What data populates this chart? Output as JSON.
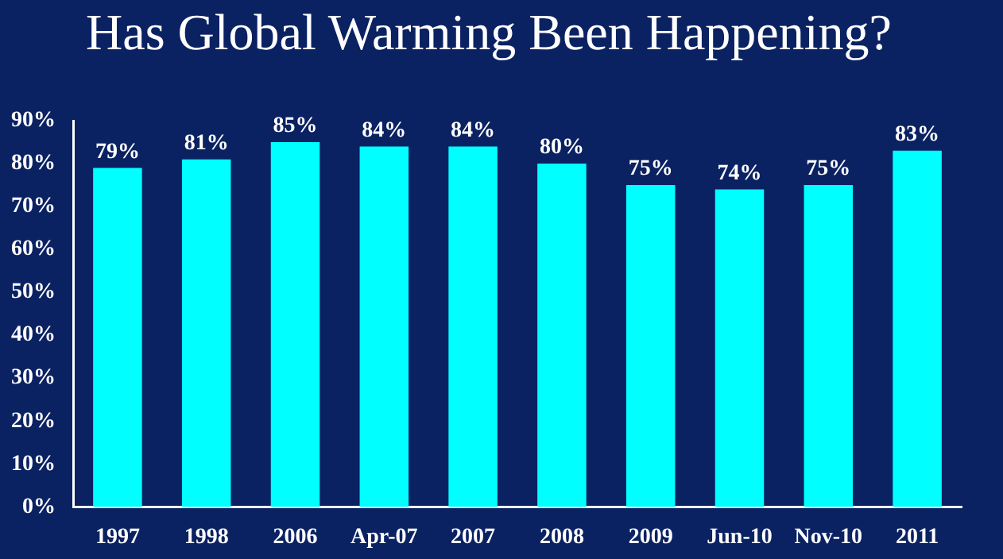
{
  "chart_data": {
    "type": "bar",
    "title": "Has Global Warming Been Happening?",
    "categories": [
      "1997",
      "1998",
      "2006",
      "Apr-07",
      "2007",
      "2008",
      "2009",
      "Jun-10",
      "Nov-10",
      "2011"
    ],
    "values": [
      79,
      81,
      85,
      84,
      84,
      80,
      75,
      74,
      75,
      83
    ],
    "value_labels": [
      "79%",
      "81%",
      "85%",
      "84%",
      "84%",
      "80%",
      "75%",
      "74%",
      "75%",
      "83%"
    ],
    "color": "#00ffff",
    "ylim": [
      0,
      90
    ],
    "yticks": [
      {
        "value": 0,
        "label": "0%"
      },
      {
        "value": 10,
        "label": "10%"
      },
      {
        "value": 20,
        "label": "20%"
      },
      {
        "value": 30,
        "label": "30%"
      },
      {
        "value": 40,
        "label": "40%"
      },
      {
        "value": 50,
        "label": "50%"
      },
      {
        "value": 60,
        "label": "60%"
      },
      {
        "value": 70,
        "label": "70%"
      },
      {
        "value": 80,
        "label": "80%"
      },
      {
        "value": 90,
        "label": "90%"
      }
    ],
    "grid": false,
    "legend": false
  }
}
